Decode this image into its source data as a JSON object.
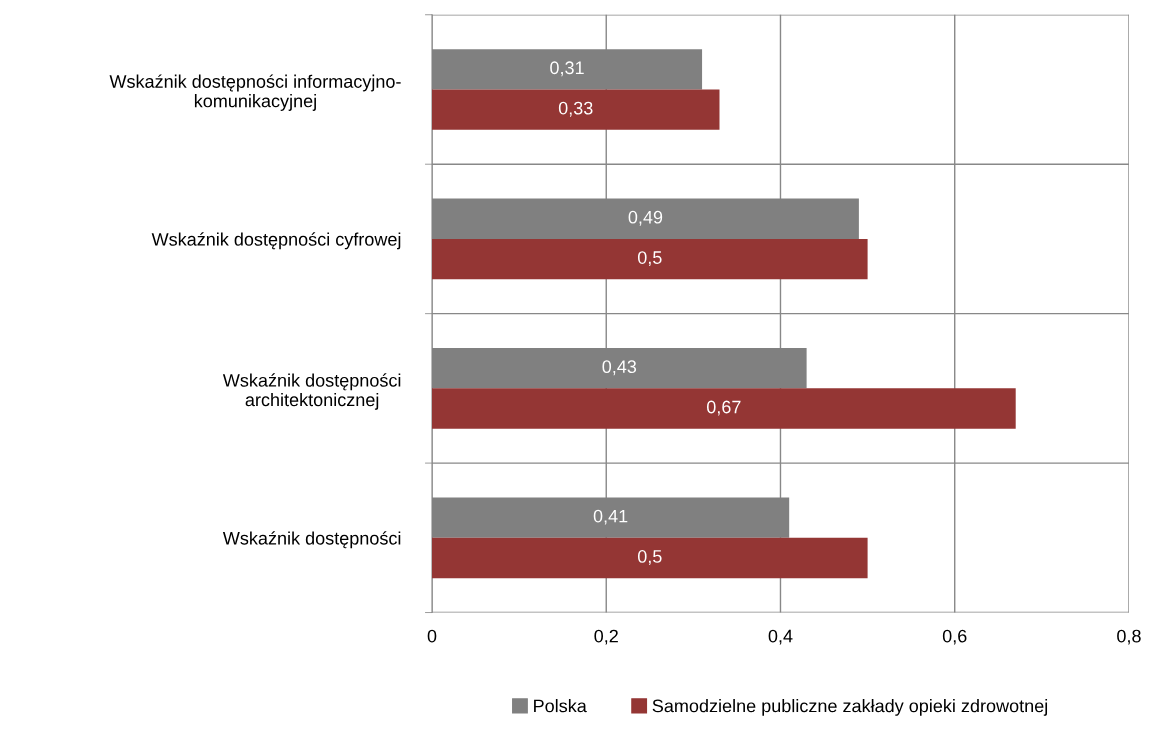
{
  "chart_data": {
    "type": "bar",
    "orientation": "horizontal",
    "categories": [
      "Wskaźnik dostępności informacyjno-\nkomunikacyjnej",
      "Wskaźnik dostępności cyfrowej",
      "Wskaźnik dostępności\narchitektonicznej",
      "Wskaźnik dostępności"
    ],
    "series": [
      {
        "name": "Polska",
        "color": "#808080",
        "values": [
          0.31,
          0.49,
          0.43,
          0.41
        ],
        "value_labels": [
          "0,31",
          "0,49",
          "0,43",
          "0,41"
        ]
      },
      {
        "name": "Samodzielne publiczne zakłady opieki zdrowotnej",
        "color": "#943634",
        "values": [
          0.33,
          0.5,
          0.67,
          0.5
        ],
        "value_labels": [
          "0,33",
          "0,5",
          "0,67",
          "0,5"
        ]
      }
    ],
    "xlim": [
      0,
      0.8
    ],
    "xticks": [
      0,
      {
        "value": 0.2,
        "label": "0,2"
      },
      {
        "value": 0.4,
        "label": "0,4"
      },
      {
        "value": 0.6,
        "label": "0,6"
      },
      {
        "value": 0.8,
        "label": "0,8"
      }
    ],
    "grid": true,
    "legend": "bottom"
  }
}
